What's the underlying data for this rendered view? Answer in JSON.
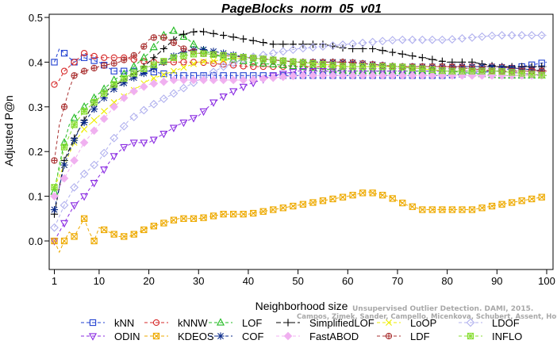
{
  "chart_data": {
    "type": "line",
    "title": "PageBlocks_norm_05_v01",
    "xlabel": "Neighborhood size",
    "ylabel": "Adjusted P@n",
    "xlim": [
      1,
      100
    ],
    "ylim": [
      -0.05,
      0.5
    ],
    "xticks": [
      1,
      10,
      20,
      30,
      40,
      50,
      60,
      70,
      80,
      90,
      100
    ],
    "yticks": [
      0.0,
      0.1,
      0.2,
      0.3,
      0.4,
      0.5
    ],
    "ytick_labels": [
      "0.0",
      "0.1",
      "0.2",
      "0.3",
      "0.4",
      "0.5"
    ],
    "grid": false,
    "legend_position": "bottom",
    "watermark": [
      "Unsupervised Outlier Detection. DAMI, 2015.",
      "Campos, Zimek, Sander, Campello, Micenkova, Schubert, Assent, Houle"
    ],
    "series": [
      {
        "name": "kNN",
        "color": "#1f3fd1",
        "marker": "square",
        "dash": "4,3",
        "points": [
          [
            1,
            0.4
          ],
          [
            2,
            0.43
          ],
          [
            3,
            0.42
          ],
          [
            4,
            0.41
          ],
          [
            5,
            0.4
          ],
          [
            7,
            0.41
          ],
          [
            10,
            0.4
          ],
          [
            13,
            0.38
          ],
          [
            16,
            0.38
          ],
          [
            20,
            0.38
          ],
          [
            25,
            0.37
          ],
          [
            30,
            0.37
          ],
          [
            40,
            0.37
          ],
          [
            50,
            0.37
          ],
          [
            60,
            0.37
          ],
          [
            70,
            0.37
          ],
          [
            80,
            0.37
          ],
          [
            90,
            0.38
          ],
          [
            95,
            0.39
          ],
          [
            100,
            0.4
          ]
        ]
      },
      {
        "name": "kNNW",
        "color": "#d62a2a",
        "marker": "circle",
        "dash": "4,3",
        "points": [
          [
            1,
            0.35
          ],
          [
            2,
            0.36
          ],
          [
            3,
            0.38
          ],
          [
            5,
            0.4
          ],
          [
            7,
            0.42
          ],
          [
            10,
            0.41
          ],
          [
            15,
            0.41
          ],
          [
            20,
            0.4
          ],
          [
            25,
            0.4
          ],
          [
            30,
            0.4
          ],
          [
            40,
            0.39
          ],
          [
            50,
            0.39
          ],
          [
            60,
            0.39
          ],
          [
            70,
            0.39
          ],
          [
            80,
            0.39
          ],
          [
            90,
            0.39
          ],
          [
            100,
            0.38
          ]
        ]
      },
      {
        "name": "LOF",
        "color": "#22bb22",
        "marker": "triangle",
        "dash": "4,3",
        "points": [
          [
            1,
            0.11
          ],
          [
            2,
            0.17
          ],
          [
            3,
            0.22
          ],
          [
            4,
            0.26
          ],
          [
            6,
            0.29
          ],
          [
            8,
            0.31
          ],
          [
            10,
            0.33
          ],
          [
            13,
            0.36
          ],
          [
            16,
            0.38
          ],
          [
            20,
            0.42
          ],
          [
            23,
            0.46
          ],
          [
            25,
            0.47
          ],
          [
            28,
            0.45
          ],
          [
            30,
            0.43
          ],
          [
            35,
            0.41
          ],
          [
            40,
            0.4
          ],
          [
            50,
            0.39
          ],
          [
            60,
            0.38
          ],
          [
            70,
            0.38
          ],
          [
            80,
            0.38
          ],
          [
            90,
            0.37
          ],
          [
            100,
            0.37
          ]
        ]
      },
      {
        "name": "SimplifiedLOF",
        "color": "#000000",
        "marker": "plus",
        "dash": "6,3",
        "points": [
          [
            1,
            0.06
          ],
          [
            2,
            0.12
          ],
          [
            3,
            0.18
          ],
          [
            5,
            0.23
          ],
          [
            7,
            0.27
          ],
          [
            9,
            0.31
          ],
          [
            12,
            0.34
          ],
          [
            15,
            0.36
          ],
          [
            18,
            0.38
          ],
          [
            20,
            0.4
          ],
          [
            23,
            0.43
          ],
          [
            26,
            0.46
          ],
          [
            30,
            0.47
          ],
          [
            35,
            0.46
          ],
          [
            40,
            0.45
          ],
          [
            45,
            0.44
          ],
          [
            50,
            0.44
          ],
          [
            55,
            0.44
          ],
          [
            60,
            0.43
          ],
          [
            65,
            0.43
          ],
          [
            70,
            0.42
          ],
          [
            75,
            0.41
          ],
          [
            80,
            0.4
          ],
          [
            85,
            0.4
          ],
          [
            90,
            0.39
          ],
          [
            95,
            0.39
          ],
          [
            100,
            0.39
          ]
        ]
      },
      {
        "name": "LoOP",
        "color": "#eeee00",
        "marker": "x",
        "dash": "4,3",
        "points": [
          [
            1,
            0.12
          ],
          [
            3,
            0.17
          ],
          [
            5,
            0.22
          ],
          [
            7,
            0.25
          ],
          [
            10,
            0.28
          ],
          [
            13,
            0.31
          ],
          [
            16,
            0.33
          ],
          [
            20,
            0.36
          ],
          [
            25,
            0.38
          ],
          [
            30,
            0.4
          ],
          [
            40,
            0.41
          ],
          [
            50,
            0.4
          ],
          [
            60,
            0.39
          ],
          [
            70,
            0.39
          ],
          [
            80,
            0.38
          ],
          [
            90,
            0.38
          ],
          [
            100,
            0.37
          ]
        ]
      },
      {
        "name": "LDOF",
        "color": "#b0b0ee",
        "marker": "diamond",
        "dash": "4,3",
        "points": [
          [
            1,
            0.03
          ],
          [
            3,
            0.08
          ],
          [
            5,
            0.12
          ],
          [
            7,
            0.15
          ],
          [
            10,
            0.18
          ],
          [
            13,
            0.23
          ],
          [
            16,
            0.27
          ],
          [
            20,
            0.3
          ],
          [
            25,
            0.33
          ],
          [
            30,
            0.36
          ],
          [
            35,
            0.39
          ],
          [
            40,
            0.41
          ],
          [
            50,
            0.43
          ],
          [
            60,
            0.44
          ],
          [
            70,
            0.45
          ],
          [
            80,
            0.45
          ],
          [
            90,
            0.46
          ],
          [
            95,
            0.46
          ],
          [
            100,
            0.46
          ]
        ]
      },
      {
        "name": "ODIN",
        "color": "#8a2be2",
        "marker": "triangle-down",
        "dash": "4,3",
        "points": [
          [
            1,
            0.0
          ],
          [
            2,
            0.02
          ],
          [
            3,
            0.04
          ],
          [
            4,
            0.06
          ],
          [
            5,
            0.08
          ],
          [
            7,
            0.1
          ],
          [
            9,
            0.13
          ],
          [
            11,
            0.16
          ],
          [
            13,
            0.19
          ],
          [
            15,
            0.21
          ],
          [
            17,
            0.22
          ],
          [
            20,
            0.22
          ],
          [
            23,
            0.24
          ],
          [
            26,
            0.26
          ],
          [
            30,
            0.28
          ],
          [
            33,
            0.31
          ],
          [
            36,
            0.33
          ],
          [
            40,
            0.35
          ],
          [
            45,
            0.37
          ],
          [
            50,
            0.38
          ],
          [
            60,
            0.38
          ],
          [
            70,
            0.38
          ],
          [
            80,
            0.38
          ],
          [
            90,
            0.38
          ],
          [
            100,
            0.37
          ]
        ]
      },
      {
        "name": "KDEOS",
        "color": "#eeaa00",
        "marker": "square-x",
        "dash": "4,3",
        "points": [
          [
            1,
            0.0
          ],
          [
            2,
            -0.025
          ],
          [
            3,
            0.0
          ],
          [
            4,
            0.02
          ],
          [
            5,
            0.01
          ],
          [
            6,
            0.03
          ],
          [
            7,
            0.05
          ],
          [
            8,
            0.02
          ],
          [
            9,
            0.0
          ],
          [
            10,
            0.03
          ],
          [
            12,
            0.02
          ],
          [
            14,
            0.01
          ],
          [
            16,
            0.01
          ],
          [
            18,
            0.02
          ],
          [
            20,
            0.03
          ],
          [
            23,
            0.04
          ],
          [
            26,
            0.05
          ],
          [
            30,
            0.05
          ],
          [
            35,
            0.06
          ],
          [
            40,
            0.06
          ],
          [
            45,
            0.07
          ],
          [
            50,
            0.08
          ],
          [
            55,
            0.09
          ],
          [
            60,
            0.1
          ],
          [
            64,
            0.11
          ],
          [
            68,
            0.1
          ],
          [
            72,
            0.08
          ],
          [
            75,
            0.07
          ],
          [
            80,
            0.07
          ],
          [
            85,
            0.07
          ],
          [
            90,
            0.08
          ],
          [
            95,
            0.09
          ],
          [
            100,
            0.1
          ]
        ]
      },
      {
        "name": "COF",
        "color": "#0a2a8a",
        "marker": "asterisk",
        "dash": "4,3",
        "points": [
          [
            1,
            0.07
          ],
          [
            2,
            0.12
          ],
          [
            3,
            0.17
          ],
          [
            4,
            0.2
          ],
          [
            6,
            0.25
          ],
          [
            8,
            0.28
          ],
          [
            10,
            0.31
          ],
          [
            13,
            0.34
          ],
          [
            16,
            0.36
          ],
          [
            20,
            0.38
          ],
          [
            23,
            0.4
          ],
          [
            26,
            0.42
          ],
          [
            30,
            0.43
          ],
          [
            35,
            0.42
          ],
          [
            40,
            0.41
          ],
          [
            50,
            0.4
          ],
          [
            60,
            0.4
          ],
          [
            70,
            0.39
          ],
          [
            80,
            0.39
          ],
          [
            90,
            0.39
          ],
          [
            100,
            0.38
          ]
        ]
      },
      {
        "name": "FastABOD",
        "color": "#f0b0f0",
        "marker": "diamond-filled",
        "dash": "4,3",
        "points": [
          [
            1,
            0.1
          ],
          [
            3,
            0.14
          ],
          [
            5,
            0.18
          ],
          [
            7,
            0.22
          ],
          [
            10,
            0.26
          ],
          [
            13,
            0.3
          ],
          [
            16,
            0.33
          ],
          [
            20,
            0.35
          ],
          [
            25,
            0.36
          ],
          [
            30,
            0.36
          ],
          [
            40,
            0.36
          ],
          [
            50,
            0.37
          ],
          [
            60,
            0.37
          ],
          [
            70,
            0.37
          ],
          [
            80,
            0.37
          ],
          [
            90,
            0.37
          ],
          [
            100,
            0.37
          ]
        ]
      },
      {
        "name": "LDF",
        "color": "#aa3333",
        "marker": "circle-plus",
        "dash": "4,3",
        "points": [
          [
            1,
            0.18
          ],
          [
            2,
            0.26
          ],
          [
            3,
            0.3
          ],
          [
            4,
            0.34
          ],
          [
            5,
            0.37
          ],
          [
            7,
            0.38
          ],
          [
            10,
            0.39
          ],
          [
            14,
            0.4
          ],
          [
            18,
            0.42
          ],
          [
            20,
            0.45
          ],
          [
            22,
            0.46
          ],
          [
            24,
            0.45
          ],
          [
            27,
            0.43
          ],
          [
            30,
            0.42
          ],
          [
            40,
            0.41
          ],
          [
            50,
            0.4
          ],
          [
            60,
            0.4
          ],
          [
            70,
            0.39
          ],
          [
            80,
            0.39
          ],
          [
            90,
            0.38
          ],
          [
            100,
            0.38
          ]
        ]
      },
      {
        "name": "INFLO",
        "color": "#88dd33",
        "marker": "square-star",
        "dash": "4,3",
        "points": [
          [
            1,
            0.12
          ],
          [
            2,
            0.16
          ],
          [
            3,
            0.21
          ],
          [
            5,
            0.26
          ],
          [
            7,
            0.29
          ],
          [
            10,
            0.32
          ],
          [
            13,
            0.35
          ],
          [
            16,
            0.37
          ],
          [
            20,
            0.39
          ],
          [
            25,
            0.41
          ],
          [
            30,
            0.42
          ],
          [
            40,
            0.41
          ],
          [
            50,
            0.4
          ],
          [
            60,
            0.39
          ],
          [
            70,
            0.39
          ],
          [
            80,
            0.38
          ],
          [
            90,
            0.38
          ],
          [
            100,
            0.37
          ]
        ]
      }
    ]
  }
}
